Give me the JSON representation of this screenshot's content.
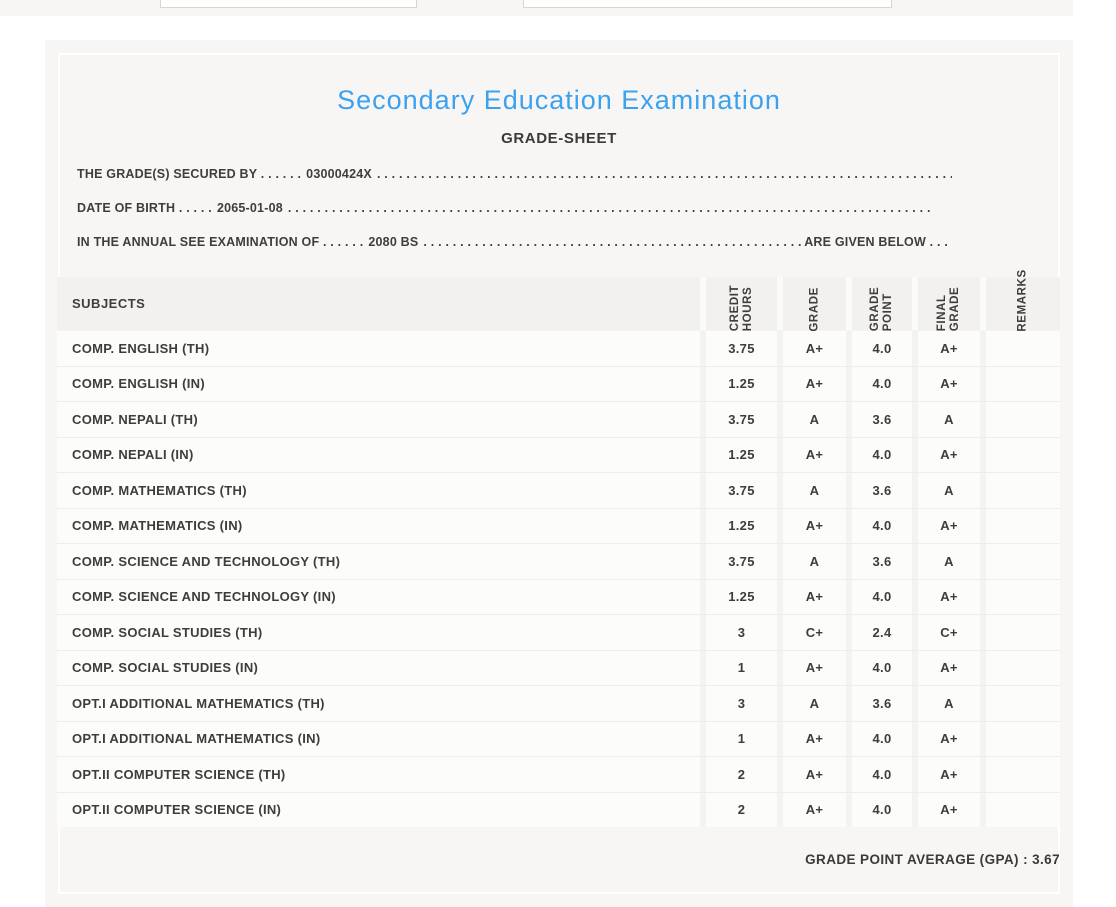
{
  "colors": {
    "accent_blue": "#3ba2ef",
    "card_background": "#f7f6f5",
    "text_dark": "#3f3d3c",
    "table_header_bg": "#f2f1f0",
    "table_row_bg": "#fcfcfb"
  },
  "top_bar": {
    "inputs": [
      {
        "value": "",
        "placeholder": ""
      },
      {
        "value": "",
        "placeholder": ""
      }
    ]
  },
  "card": {
    "title": "Secondary Education Examination",
    "subtitle": "GRADE-SHEET",
    "statements": [
      {
        "prefix": "THE GRADE(S) SECURED BY . . . . . .",
        "value": "03000424X",
        "dots": ". . . . . . . . . . . . . . . . . . . . . . . . . . . . . . . . . . . . . . . . . . . . . . . . . . . . . . . . . . . . . . . . . . . . . . . . . . . . . . . . . . . . . . . . . . . . . . . . . . . .",
        "suffix": ""
      },
      {
        "prefix": "DATE OF BIRTH . . . . .",
        "value": "2065-01-08",
        "dots": ". . . . . . . . . . . . . . . . . . . . . . . . . . . . . . . . . . . . . . . . . . . . . . . . . . . . . . . . . . . . . . . . . . . . . . . . . . . . . . . . . . . . . . . . . . . . . . . . . . . .",
        "suffix": ""
      },
      {
        "prefix": "IN THE ANNUAL SEE EXAMINATION OF . . . . . .",
        "value": "2080 BS",
        "dots": ". . . . . . . . . . . . . . . . . . . . . . . . . . . . . . . . . . . . . . . . . . . . . . . . . . . . . . . . . . . . . . . . . . . . . . . . . . . . . . . . . . . . . . . . . . . . . . . . . . . .",
        "suffix": " ARE GIVEN BELOW . . ."
      }
    ]
  },
  "table": {
    "headers": [
      "SUBJECTS",
      "CREDIT\nHOURS",
      "GRADE",
      "GRADE\nPOINT",
      "FINAL\nGRADE",
      "REMARKS"
    ],
    "rows": [
      {
        "subject": "COMP. ENGLISH (TH)",
        "credit_hours": "3.75",
        "grade": "A+",
        "grade_point": "4.0",
        "final_grade": "A+",
        "remarks": ""
      },
      {
        "subject": "COMP. ENGLISH (IN)",
        "credit_hours": "1.25",
        "grade": "A+",
        "grade_point": "4.0",
        "final_grade": "A+",
        "remarks": ""
      },
      {
        "subject": "COMP. NEPALI (TH)",
        "credit_hours": "3.75",
        "grade": "A",
        "grade_point": "3.6",
        "final_grade": "A",
        "remarks": ""
      },
      {
        "subject": "COMP. NEPALI (IN)",
        "credit_hours": "1.25",
        "grade": "A+",
        "grade_point": "4.0",
        "final_grade": "A+",
        "remarks": ""
      },
      {
        "subject": "COMP. MATHEMATICS (TH)",
        "credit_hours": "3.75",
        "grade": "A",
        "grade_point": "3.6",
        "final_grade": "A",
        "remarks": ""
      },
      {
        "subject": "COMP. MATHEMATICS (IN)",
        "credit_hours": "1.25",
        "grade": "A+",
        "grade_point": "4.0",
        "final_grade": "A+",
        "remarks": ""
      },
      {
        "subject": "COMP. SCIENCE AND TECHNOLOGY (TH)",
        "credit_hours": "3.75",
        "grade": "A",
        "grade_point": "3.6",
        "final_grade": "A",
        "remarks": ""
      },
      {
        "subject": "COMP. SCIENCE AND TECHNOLOGY (IN)",
        "credit_hours": "1.25",
        "grade": "A+",
        "grade_point": "4.0",
        "final_grade": "A+",
        "remarks": ""
      },
      {
        "subject": "COMP. SOCIAL STUDIES (TH)",
        "credit_hours": "3",
        "grade": "C+",
        "grade_point": "2.4",
        "final_grade": "C+",
        "remarks": ""
      },
      {
        "subject": "COMP. SOCIAL STUDIES (IN)",
        "credit_hours": "1",
        "grade": "A+",
        "grade_point": "4.0",
        "final_grade": "A+",
        "remarks": ""
      },
      {
        "subject": "OPT.I ADDITIONAL MATHEMATICS (TH)",
        "credit_hours": "3",
        "grade": "A",
        "grade_point": "3.6",
        "final_grade": "A",
        "remarks": ""
      },
      {
        "subject": "OPT.I ADDITIONAL MATHEMATICS (IN)",
        "credit_hours": "1",
        "grade": "A+",
        "grade_point": "4.0",
        "final_grade": "A+",
        "remarks": ""
      },
      {
        "subject": "OPT.II COMPUTER SCIENCE (TH)",
        "credit_hours": "2",
        "grade": "A+",
        "grade_point": "4.0",
        "final_grade": "A+",
        "remarks": ""
      },
      {
        "subject": "OPT.II COMPUTER SCIENCE (IN)",
        "credit_hours": "2",
        "grade": "A+",
        "grade_point": "4.0",
        "final_grade": "A+",
        "remarks": ""
      }
    ]
  },
  "footer": {
    "gpa_text": "GRADE POINT AVERAGE (GPA) : 3.67"
  }
}
